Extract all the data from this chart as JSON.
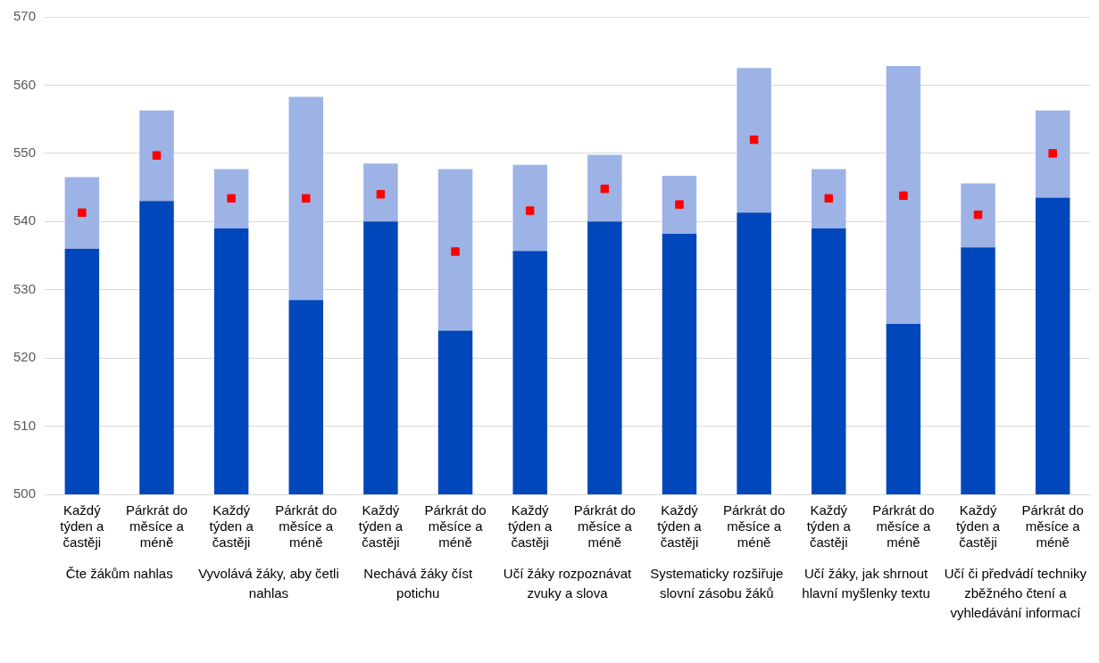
{
  "chart_data": {
    "type": "bar",
    "stacked": true,
    "categories": [
      "Každý týden a častěji",
      "Párkrát do měsíce a méně",
      "Každý týden a častěji",
      "Párkrát do měsíce a méně",
      "Každý týden a častěji",
      "Párkrát do měsíce a méně",
      "Každý týden a častěji",
      "Párkrát do měsíce a méně",
      "Každý týden a častěji",
      "Párkrát do měsíce a méně",
      "Každý týden a častěji",
      "Párkrát do měsíce a méně",
      "Každý týden a častěji",
      "Párkrát do měsíce a méně"
    ],
    "series": [
      {
        "color": "#0047bb",
        "values": [
          536,
          543,
          539,
          528.5,
          540,
          524,
          535.7,
          540,
          538.2,
          541.3,
          539,
          525,
          536.2,
          543.5
        ]
      },
      {
        "color": "#9db3e6",
        "base": [
          536,
          543,
          539,
          528.5,
          540,
          524,
          535.7,
          540,
          538.2,
          541.3,
          539,
          525,
          536.2,
          543.5
        ],
        "values": [
          10.5,
          13.3,
          8.7,
          29.8,
          8.5,
          23.7,
          12.6,
          9.8,
          8.5,
          21.2,
          8.7,
          37.8,
          9.4,
          12.8
        ]
      },
      {
        "type": "scatter",
        "color": "#ff0000",
        "marker": "square",
        "values": [
          541.3,
          549.7,
          543.4,
          543.4,
          544,
          535.6,
          541.6,
          544.8,
          542.5,
          552,
          543.4,
          543.8,
          541,
          550
        ]
      }
    ],
    "ylim": [
      500,
      570
    ],
    "yticks": [
      500,
      510,
      520,
      530,
      540,
      550,
      560,
      570
    ],
    "grid": "y",
    "legend": false,
    "annotations": [
      "Čte žákům nahlas",
      "Vyvolává žáky, aby četli nahlas",
      "Nechává žáky číst potichu",
      "Učí žáky rozpoznávat zvuky a slova",
      "Systematicky rozšiřuje slovní zásobu žáků",
      "Učí žáky, jak shrnout hlavní myšlenky textu",
      "Učí či předvádí techniky zběžného čtení a vyhledávání informací"
    ]
  }
}
